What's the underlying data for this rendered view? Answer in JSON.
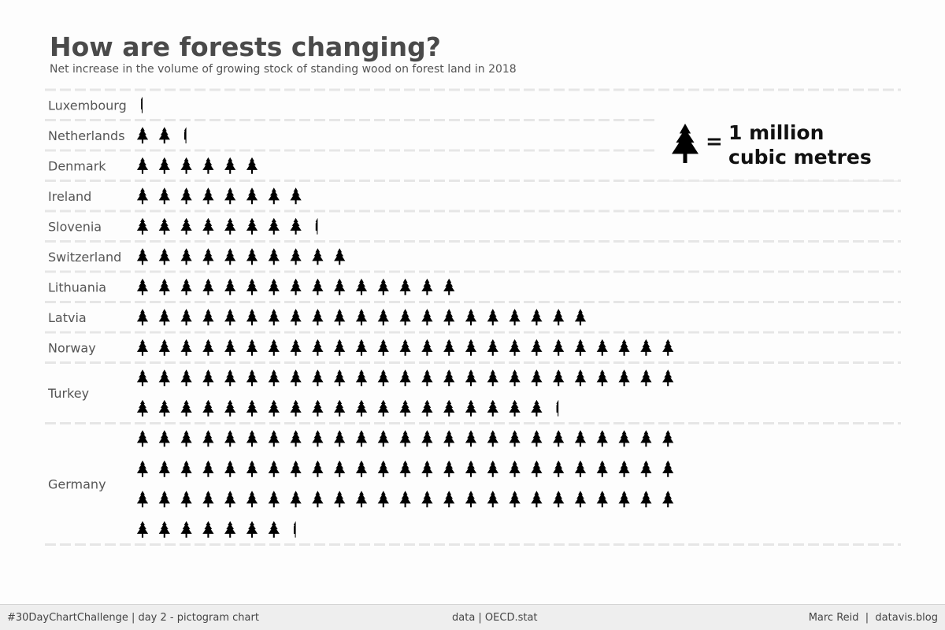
{
  "title": "How are forests changing?",
  "subtitle": "Net increase in the volume of growing stock of standing wood on forest land in 2018",
  "legend": {
    "icon": "tree-icon",
    "equals": "=",
    "line1": "1 million",
    "line2": "cubic metres"
  },
  "colors": {
    "icon": "#000000",
    "label": "#555555",
    "title": "#4a4a4a",
    "grid": "#e6e6e6",
    "footer_bg": "#eeeeee"
  },
  "chart_data": {
    "type": "pictogram",
    "unit": "1 million cubic metres",
    "icons_per_row": 25,
    "categories": [
      "Luxembourg",
      "Netherlands",
      "Denmark",
      "Ireland",
      "Slovenia",
      "Switzerland",
      "Lithuania",
      "Latvia",
      "Norway",
      "Turkey",
      "Germany"
    ],
    "values": [
      0.2,
      2.3,
      6,
      8,
      8.3,
      10,
      15,
      21,
      25,
      44.3,
      82.3
    ]
  },
  "footer": {
    "left": "#30DayChartChallenge | day 2 - pictogram chart",
    "center": "data | OECD.stat",
    "right": "Marc Reid  |  datavis.blog"
  }
}
